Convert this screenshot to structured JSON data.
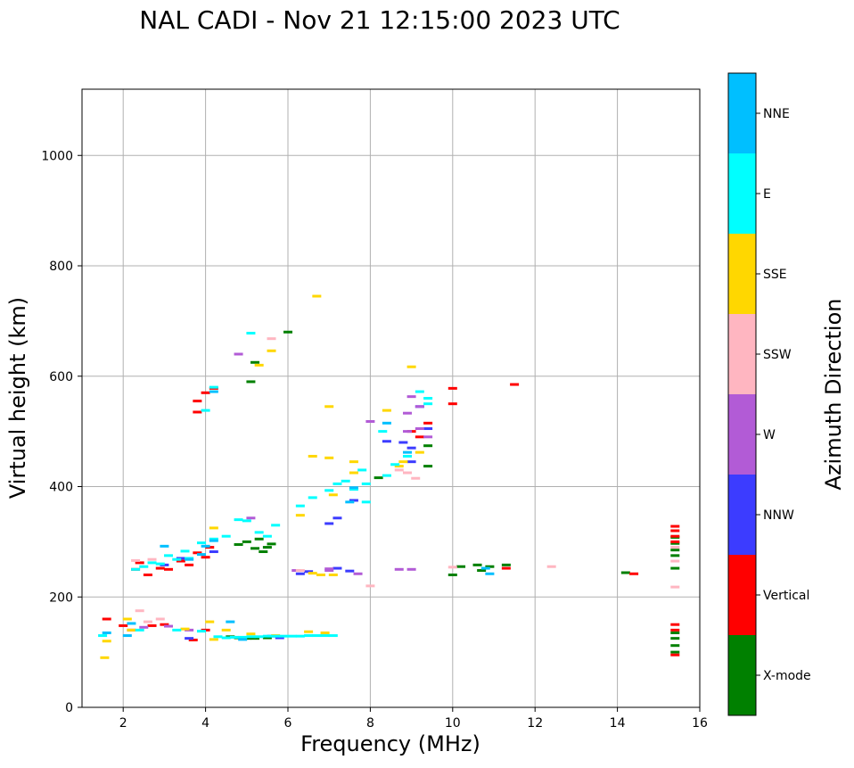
{
  "chart_data": {
    "type": "scatter",
    "title": "NAL CADI - Nov 21 12:15:00 2023 UTC",
    "xlabel": "Frequency (MHz)",
    "ylabel": "Virtual height (km)",
    "xlim": [
      1,
      16
    ],
    "ylim": [
      0,
      1120
    ],
    "xticks": [
      2,
      4,
      6,
      8,
      10,
      12,
      14,
      16
    ],
    "yticks": [
      0,
      200,
      400,
      600,
      800,
      1000
    ],
    "grid": true,
    "colorbar": {
      "label": "Azimuth Direction",
      "categories": [
        {
          "name": "X-mode",
          "color": "#008000"
        },
        {
          "name": "Vertical",
          "color": "#ff0000"
        },
        {
          "name": "NNW",
          "color": "#3c3cff"
        },
        {
          "name": "W",
          "color": "#b25bd6"
        },
        {
          "name": "SSW",
          "color": "#ffb6c1"
        },
        {
          "name": "SSE",
          "color": "#ffd700"
        },
        {
          "name": "E",
          "color": "#00ffff"
        },
        {
          "name": "NNE",
          "color": "#00bfff"
        }
      ]
    },
    "series": [
      {
        "name": "X-mode",
        "color": "#008000",
        "points": [
          [
            4.6,
            128
          ],
          [
            4.8,
            126
          ],
          [
            5.0,
            125
          ],
          [
            5.2,
            125
          ],
          [
            5.5,
            126
          ],
          [
            4.8,
            295
          ],
          [
            5.0,
            300
          ],
          [
            5.2,
            288
          ],
          [
            5.3,
            305
          ],
          [
            5.5,
            290
          ],
          [
            5.6,
            296
          ],
          [
            5.4,
            282
          ],
          [
            6.0,
            680
          ],
          [
            5.2,
            625
          ],
          [
            5.1,
            590
          ],
          [
            8.2,
            416
          ],
          [
            9.4,
            474
          ],
          [
            9.4,
            437
          ],
          [
            10.0,
            240
          ],
          [
            10.2,
            255
          ],
          [
            10.6,
            258
          ],
          [
            10.7,
            248
          ],
          [
            10.9,
            255
          ],
          [
            11.3,
            258
          ],
          [
            14.2,
            244
          ],
          [
            15.4,
            100
          ],
          [
            15.4,
            112
          ],
          [
            15.4,
            125
          ],
          [
            15.4,
            135
          ],
          [
            15.4,
            285
          ],
          [
            15.4,
            297
          ],
          [
            15.4,
            308
          ],
          [
            15.4,
            275
          ],
          [
            15.4,
            252
          ]
        ]
      },
      {
        "name": "Vertical",
        "color": "#ff0000",
        "points": [
          [
            2.3,
            250
          ],
          [
            2.4,
            262
          ],
          [
            2.6,
            240
          ],
          [
            2.9,
            252
          ],
          [
            3.1,
            250
          ],
          [
            3.4,
            265
          ],
          [
            3.6,
            258
          ],
          [
            3.8,
            280
          ],
          [
            4.0,
            272
          ],
          [
            4.1,
            290
          ],
          [
            3.8,
            535
          ],
          [
            3.8,
            555
          ],
          [
            4.0,
            570
          ],
          [
            4.2,
            578
          ],
          [
            1.6,
            160
          ],
          [
            2.0,
            148
          ],
          [
            2.2,
            140
          ],
          [
            2.7,
            148
          ],
          [
            3.0,
            150
          ],
          [
            4.0,
            140
          ],
          [
            3.7,
            122
          ],
          [
            9.0,
            500
          ],
          [
            9.2,
            490
          ],
          [
            9.4,
            515
          ],
          [
            10.0,
            578
          ],
          [
            10.0,
            550
          ],
          [
            11.3,
            252
          ],
          [
            11.5,
            585
          ],
          [
            14.4,
            242
          ],
          [
            15.4,
            95
          ],
          [
            15.4,
            140
          ],
          [
            15.4,
            150
          ],
          [
            15.4,
            300
          ],
          [
            15.4,
            310
          ],
          [
            15.4,
            320
          ],
          [
            15.4,
            328
          ]
        ]
      },
      {
        "name": "NNW",
        "color": "#3c3cff",
        "points": [
          [
            3.0,
            258
          ],
          [
            3.4,
            270
          ],
          [
            4.2,
            282
          ],
          [
            6.3,
            242
          ],
          [
            6.5,
            246
          ],
          [
            7.2,
            252
          ],
          [
            7.5,
            247
          ],
          [
            7.2,
            343
          ],
          [
            7.0,
            333
          ],
          [
            7.6,
            375
          ],
          [
            8.4,
            482
          ],
          [
            8.8,
            480
          ],
          [
            9.0,
            470
          ],
          [
            9.2,
            545
          ],
          [
            9.4,
            505
          ],
          [
            9.0,
            445
          ],
          [
            3.6,
            125
          ],
          [
            5.6,
            129
          ],
          [
            5.8,
            126
          ]
        ]
      },
      {
        "name": "W",
        "color": "#b25bd6",
        "points": [
          [
            2.5,
            145
          ],
          [
            3.1,
            147
          ],
          [
            3.6,
            140
          ],
          [
            6.2,
            248
          ],
          [
            7.0,
            251
          ],
          [
            8.7,
            250
          ],
          [
            9.0,
            250
          ],
          [
            9.0,
            563
          ],
          [
            9.2,
            545
          ],
          [
            8.9,
            533
          ],
          [
            9.2,
            505
          ],
          [
            9.4,
            490
          ],
          [
            8.9,
            500
          ],
          [
            8.0,
            518
          ],
          [
            4.8,
            640
          ],
          [
            5.1,
            343
          ],
          [
            7.7,
            242
          ],
          [
            7.0,
            248
          ]
        ]
      },
      {
        "name": "SSW",
        "color": "#ffb6c1",
        "points": [
          [
            2.4,
            175
          ],
          [
            2.6,
            155
          ],
          [
            2.9,
            160
          ],
          [
            2.3,
            266
          ],
          [
            2.7,
            268
          ],
          [
            5.6,
            668
          ],
          [
            6.3,
            248
          ],
          [
            8.7,
            430
          ],
          [
            8.9,
            425
          ],
          [
            9.1,
            415
          ],
          [
            10.0,
            254
          ],
          [
            12.4,
            255
          ],
          [
            15.4,
            218
          ],
          [
            15.4,
            265
          ],
          [
            15.4,
            290
          ],
          [
            8.0,
            220
          ]
        ]
      },
      {
        "name": "SSE",
        "color": "#ffd700",
        "points": [
          [
            1.6,
            120
          ],
          [
            1.55,
            90
          ],
          [
            2.1,
            160
          ],
          [
            4.1,
            155
          ],
          [
            4.5,
            140
          ],
          [
            5.1,
            133
          ],
          [
            5.7,
            130
          ],
          [
            6.5,
            137
          ],
          [
            6.9,
            135
          ],
          [
            4.2,
            325
          ],
          [
            6.7,
            745
          ],
          [
            7.0,
            545
          ],
          [
            6.6,
            455
          ],
          [
            7.0,
            452
          ],
          [
            7.1,
            385
          ],
          [
            6.3,
            348
          ],
          [
            7.6,
            445
          ],
          [
            7.6,
            425
          ],
          [
            8.4,
            538
          ],
          [
            8.7,
            437
          ],
          [
            8.8,
            445
          ],
          [
            9.0,
            617
          ],
          [
            9.2,
            462
          ],
          [
            6.6,
            243
          ],
          [
            6.8,
            240
          ],
          [
            7.1,
            240
          ],
          [
            5.3,
            620
          ],
          [
            5.6,
            646
          ],
          [
            2.2,
            140
          ],
          [
            3.5,
            142
          ],
          [
            4.2,
            123
          ]
        ]
      },
      {
        "name": "E",
        "color": "#00ffff",
        "points": [
          [
            1.5,
            130
          ],
          [
            2.4,
            140
          ],
          [
            3.3,
            140
          ],
          [
            3.9,
            138
          ],
          [
            4.3,
            128
          ],
          [
            4.5,
            126
          ],
          [
            4.7,
            127
          ],
          [
            4.9,
            127
          ],
          [
            5.1,
            128
          ],
          [
            5.3,
            128
          ],
          [
            5.5,
            129
          ],
          [
            5.7,
            129
          ],
          [
            5.9,
            129
          ],
          [
            6.1,
            129
          ],
          [
            6.3,
            129
          ],
          [
            6.5,
            130
          ],
          [
            6.7,
            130
          ],
          [
            6.9,
            130
          ],
          [
            7.1,
            130
          ],
          [
            2.3,
            250
          ],
          [
            2.5,
            255
          ],
          [
            2.7,
            262
          ],
          [
            2.9,
            260
          ],
          [
            3.1,
            275
          ],
          [
            3.3,
            268
          ],
          [
            3.5,
            283
          ],
          [
            3.6,
            270
          ],
          [
            3.9,
            298
          ],
          [
            4.2,
            305
          ],
          [
            4.5,
            310
          ],
          [
            4.8,
            340
          ],
          [
            5.0,
            338
          ],
          [
            5.3,
            317
          ],
          [
            5.5,
            310
          ],
          [
            5.7,
            330
          ],
          [
            6.3,
            365
          ],
          [
            6.6,
            380
          ],
          [
            7.0,
            393
          ],
          [
            7.2,
            405
          ],
          [
            7.4,
            410
          ],
          [
            7.6,
            395
          ],
          [
            7.8,
            430
          ],
          [
            7.9,
            405
          ],
          [
            8.4,
            420
          ],
          [
            8.6,
            440
          ],
          [
            8.9,
            455
          ],
          [
            9.2,
            572
          ],
          [
            9.4,
            560
          ],
          [
            9.4,
            550
          ],
          [
            4.0,
            538
          ],
          [
            4.2,
            580
          ],
          [
            5.1,
            678
          ],
          [
            7.9,
            372
          ],
          [
            8.3,
            500
          ]
        ]
      },
      {
        "name": "NNE",
        "color": "#00bfff",
        "points": [
          [
            1.6,
            135
          ],
          [
            2.2,
            152
          ],
          [
            3.6,
            268
          ],
          [
            3.9,
            277
          ],
          [
            4.0,
            292
          ],
          [
            4.2,
            302
          ],
          [
            4.2,
            572
          ],
          [
            4.6,
            155
          ],
          [
            7.5,
            372
          ],
          [
            7.6,
            398
          ],
          [
            8.4,
            515
          ],
          [
            8.9,
            462
          ],
          [
            10.9,
            242
          ],
          [
            10.8,
            252
          ],
          [
            4.9,
            123
          ],
          [
            3.0,
            292
          ],
          [
            2.1,
            130
          ]
        ]
      }
    ]
  }
}
